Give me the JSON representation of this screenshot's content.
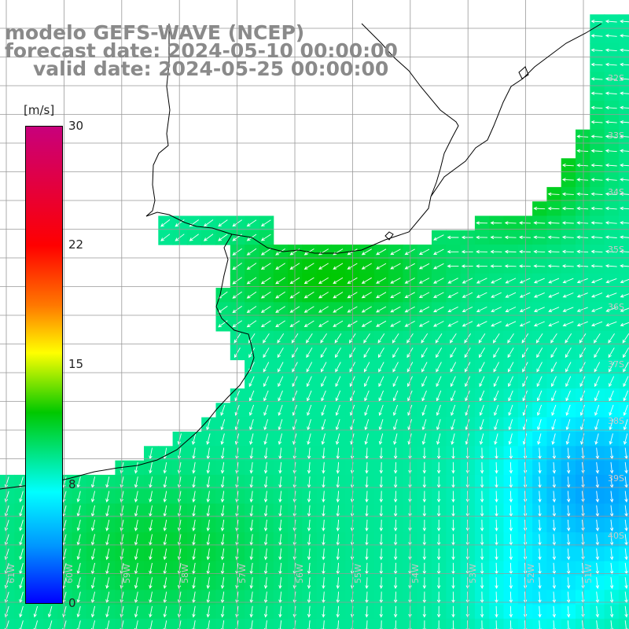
{
  "title": {
    "line1": "modelo GEFS-WAVE (NCEP)",
    "line2": "forecast date: 2024-05-10 00:00:00",
    "line3": "valid date: 2024-05-25 00:00:00"
  },
  "colorbar": {
    "unit": "[m/s]",
    "min": 0,
    "max": 30,
    "ticks": [
      "30",
      "22",
      "15",
      "8",
      "0"
    ],
    "stops": [
      "#c8007c",
      "#ff0000",
      "#ff7800",
      "#ffff00",
      "#00c800",
      "#00ffff",
      "#0096ff",
      "#0000ff"
    ]
  },
  "map": {
    "lat_labels": [
      "32S",
      "33S",
      "34S",
      "35S",
      "36S",
      "37S",
      "38S",
      "39S",
      "40S"
    ],
    "lon_labels": [
      "61W",
      "60W",
      "59W",
      "58W",
      "57W",
      "56W",
      "55W",
      "54W",
      "53W",
      "52W",
      "51W"
    ],
    "land_color": "#ffffff",
    "grid_color": "#999999",
    "arrow_color": "#ffffff"
  }
}
